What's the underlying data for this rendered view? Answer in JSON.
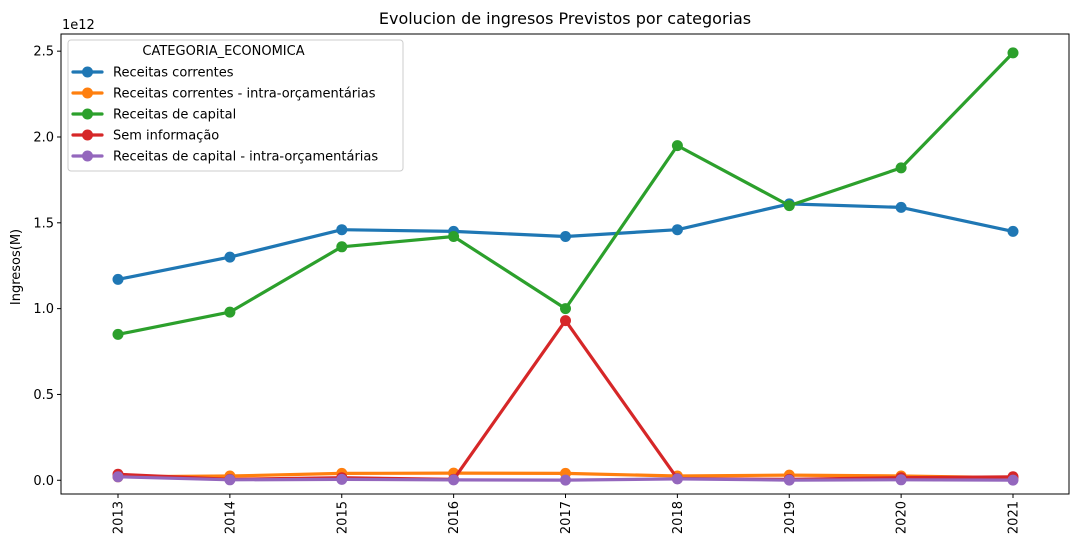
{
  "chart_data": {
    "type": "line",
    "title": "Evolucion de ingresos Previstos por categorias",
    "xlabel": "",
    "ylabel": "Ingresos(M)",
    "y_offset_label": "1e12",
    "ylim": [
      -0.08,
      2.6
    ],
    "yticks": [
      0.0,
      0.5,
      1.0,
      1.5,
      2.0,
      2.5
    ],
    "ytick_labels": [
      "0.0",
      "0.5",
      "1.0",
      "1.5",
      "2.0",
      "2.5"
    ],
    "categories": [
      "2013",
      "2014",
      "2015",
      "2016",
      "2017",
      "2018",
      "2019",
      "2020",
      "2021"
    ],
    "legend": {
      "title": "CATEGORIA_ECONOMICA",
      "placement": "upper-left"
    },
    "grid": false,
    "series": [
      {
        "name": "Receitas correntes",
        "color": "#1f77b4",
        "values": [
          1.17,
          1.3,
          1.46,
          1.45,
          1.42,
          1.46,
          1.61,
          1.59,
          1.45
        ]
      },
      {
        "name": "Receitas correntes - intra-orçamentárias",
        "color": "#ff7f0e",
        "values": [
          0.02,
          0.025,
          0.04,
          0.042,
          0.04,
          0.025,
          0.03,
          0.025,
          0.015
        ]
      },
      {
        "name": "Receitas de capital",
        "color": "#2ca02c",
        "values": [
          0.85,
          0.98,
          1.36,
          1.42,
          1.0,
          1.95,
          1.6,
          1.82,
          2.49
        ]
      },
      {
        "name": "Sem informação",
        "color": "#d62728",
        "values": [
          0.035,
          0.005,
          0.015,
          0.005,
          0.93,
          0.01,
          0.005,
          0.015,
          0.02
        ]
      },
      {
        "name": "Receitas de capital - intra-orçamentárias",
        "color": "#9467bd",
        "values": [
          0.02,
          0.003,
          0.005,
          0.002,
          0.001,
          0.008,
          0.001,
          0.003,
          0.001
        ]
      }
    ]
  }
}
